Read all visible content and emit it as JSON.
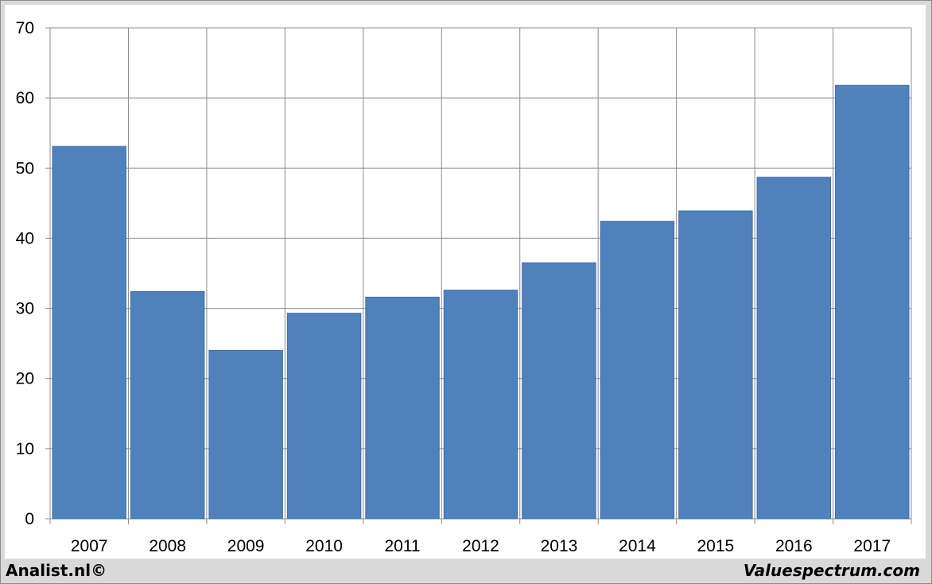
{
  "chart_data": {
    "type": "bar",
    "title": "",
    "xlabel": "",
    "ylabel": "",
    "categories": [
      "2007",
      "2008",
      "2009",
      "2010",
      "2011",
      "2012",
      "2013",
      "2014",
      "2015",
      "2016",
      "2017"
    ],
    "values": [
      53.1,
      32.4,
      24.0,
      29.3,
      31.6,
      32.6,
      36.5,
      42.4,
      43.9,
      48.7,
      61.8
    ],
    "ylim": [
      0,
      70
    ],
    "yticks": [
      "0",
      "10",
      "20",
      "30",
      "40",
      "50",
      "60",
      "70"
    ],
    "grid": "both",
    "legend": "none",
    "bar_color": "#4f81bd"
  },
  "footer": {
    "left": "Analist.nl©",
    "right": "Valuespectrum.com"
  }
}
